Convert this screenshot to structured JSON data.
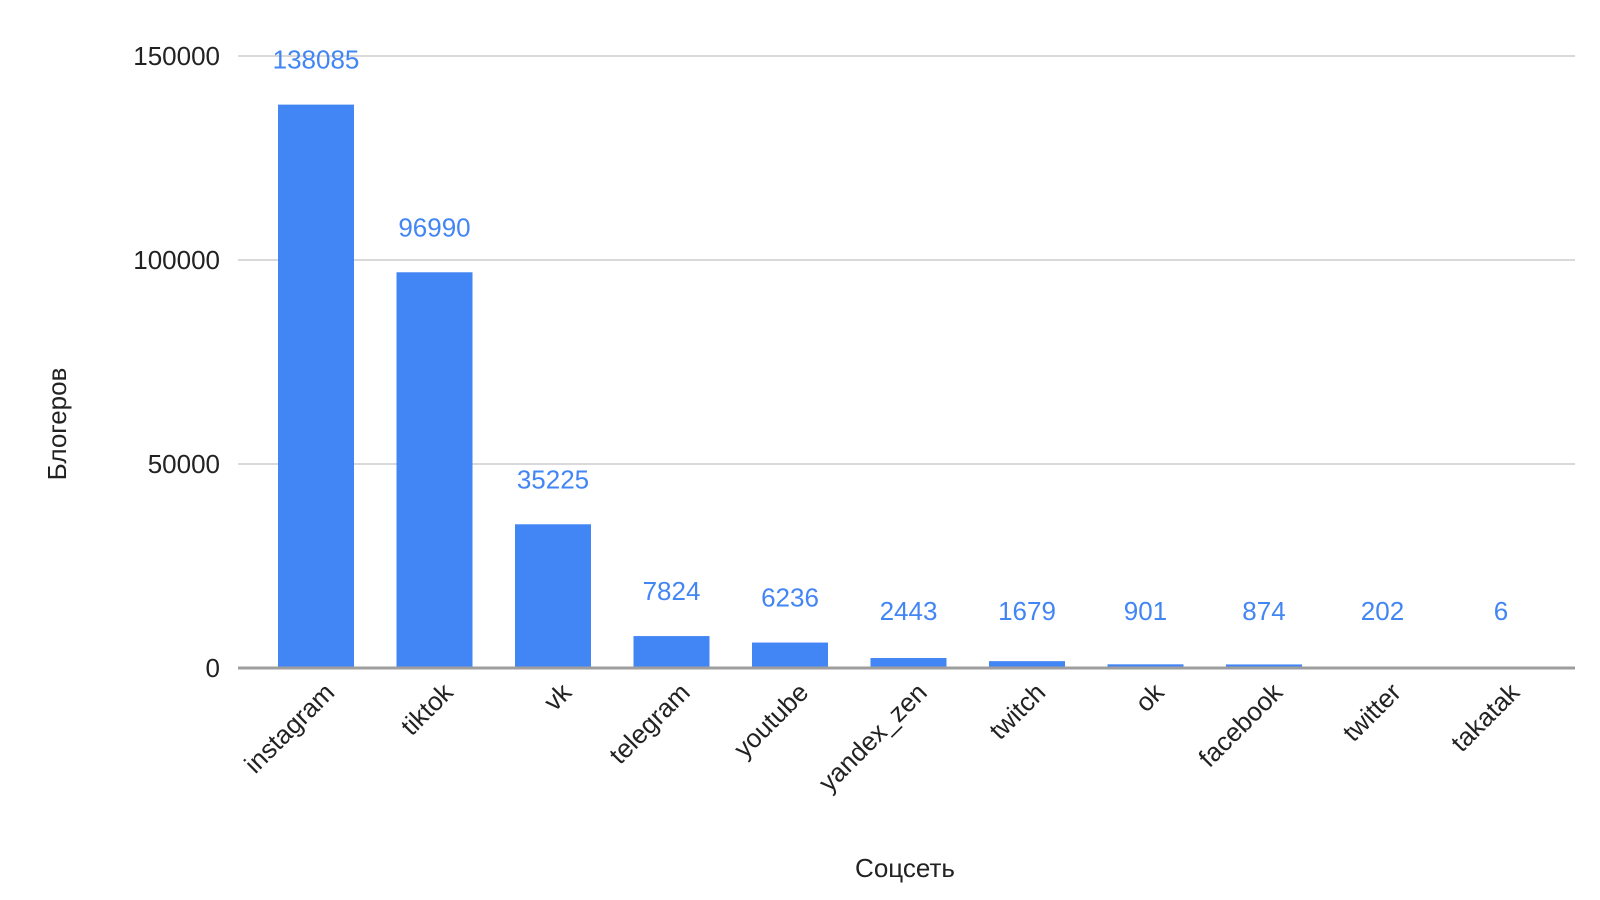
{
  "chart_data": {
    "type": "bar",
    "title": "",
    "xlabel": "Соцсеть",
    "ylabel": "Блогеров",
    "categories": [
      "instagram",
      "tiktok",
      "vk",
      "telegram",
      "youtube",
      "yandex_zen",
      "twitch",
      "ok",
      "facebook",
      "twitter",
      "takatak"
    ],
    "values": [
      138085,
      96990,
      35225,
      7824,
      6236,
      2443,
      1679,
      901,
      874,
      202,
      6
    ],
    "ylim": [
      0,
      150000
    ],
    "yticks": [
      0,
      50000,
      100000,
      150000
    ],
    "grid": true,
    "legend": "none",
    "data_labels": true,
    "colors": {
      "bar": "#4285f4",
      "data_label": "#4285f4",
      "grid": "#d9d9d9",
      "baseline": "#9e9e9e",
      "text": "#222222"
    }
  }
}
